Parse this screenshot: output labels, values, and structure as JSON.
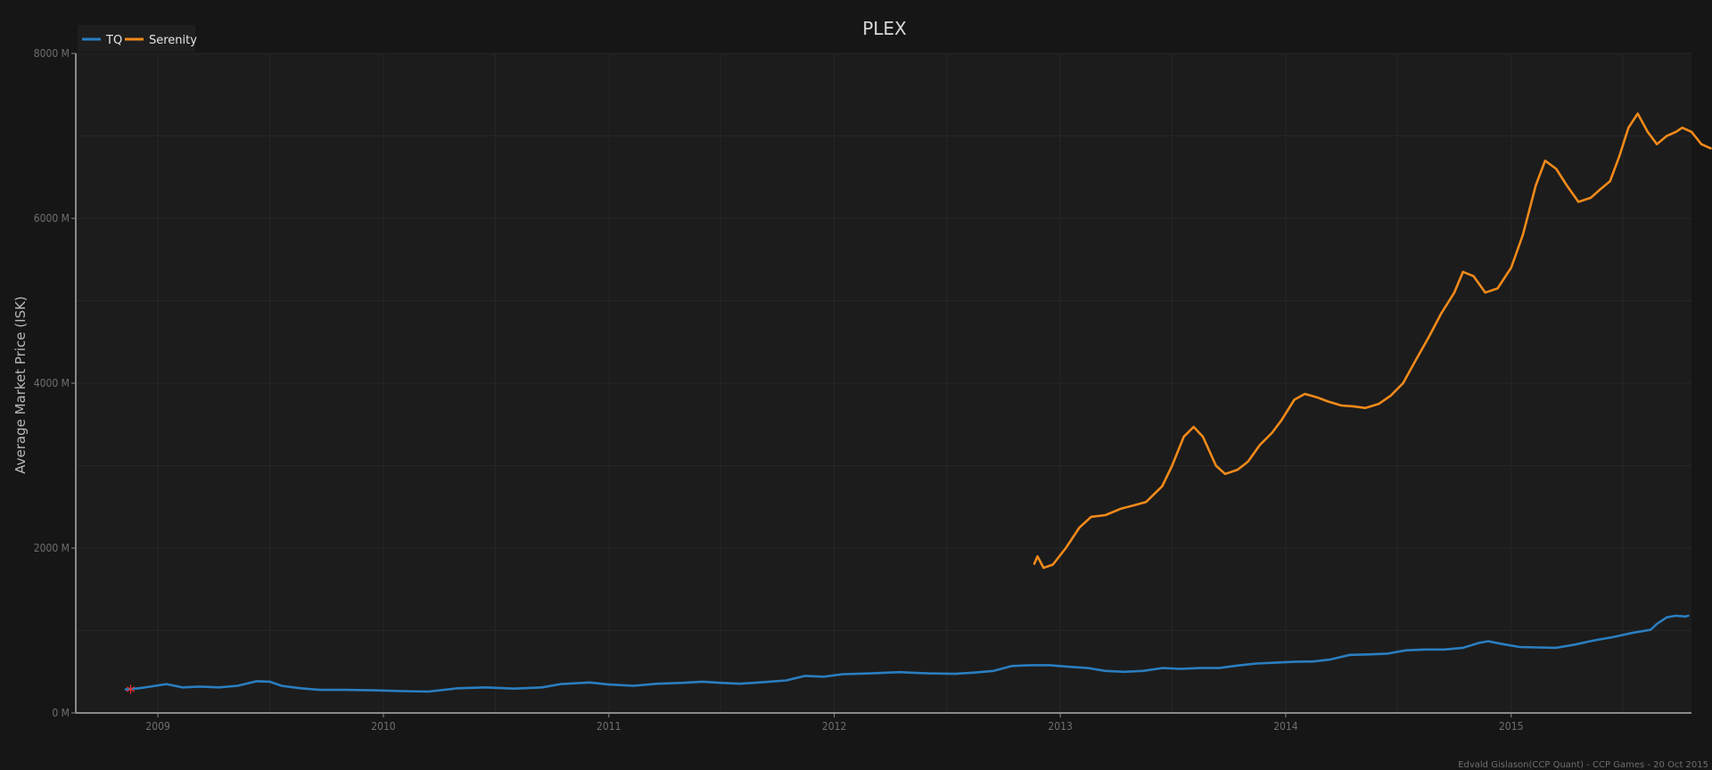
{
  "chart_data": {
    "type": "line",
    "title": "PLEX",
    "ylabel": "Average Market Price (ISK)",
    "xlabel": "",
    "credit": "Edvald Gislason(CCP Quant) - CCP Games - 20 Oct 2015",
    "marker": "*",
    "ylim": [
      0,
      8000
    ],
    "xlim": [
      "2008-08-21",
      "2015-10-20"
    ],
    "y_ticks": [
      {
        "value": 0,
        "label": "0 M"
      },
      {
        "value": 2000,
        "label": "2000 M"
      },
      {
        "value": 4000,
        "label": "4000 M"
      },
      {
        "value": 6000,
        "label": "6000 M"
      },
      {
        "value": 8000,
        "label": "8000 M"
      }
    ],
    "x_ticks": [
      {
        "value": "2009-01-01",
        "label": "2009"
      },
      {
        "value": "2010-01-01",
        "label": "2010"
      },
      {
        "value": "2011-01-01",
        "label": "2011"
      },
      {
        "value": "2012-01-01",
        "label": "2012"
      },
      {
        "value": "2013-01-01",
        "label": "2013"
      },
      {
        "value": "2014-01-01",
        "label": "2014"
      },
      {
        "value": "2015-01-01",
        "label": "2015"
      }
    ],
    "legend_position": "top-left",
    "grid": true,
    "series": [
      {
        "name": "TQ",
        "color": "#2a7ec0",
        "points": [
          [
            "2008-11-10",
            285
          ],
          [
            "2008-12-01",
            300
          ],
          [
            "2008-12-20",
            320
          ],
          [
            "2009-01-15",
            350
          ],
          [
            "2009-02-10",
            310
          ],
          [
            "2009-03-10",
            320
          ],
          [
            "2009-04-10",
            310
          ],
          [
            "2009-05-10",
            330
          ],
          [
            "2009-06-10",
            385
          ],
          [
            "2009-07-01",
            380
          ],
          [
            "2009-07-20",
            330
          ],
          [
            "2009-08-20",
            300
          ],
          [
            "2009-09-20",
            280
          ],
          [
            "2009-11-01",
            280
          ],
          [
            "2009-12-15",
            275
          ],
          [
            "2010-02-01",
            265
          ],
          [
            "2010-03-15",
            260
          ],
          [
            "2010-05-01",
            300
          ],
          [
            "2010-06-15",
            310
          ],
          [
            "2010-08-01",
            295
          ],
          [
            "2010-09-15",
            310
          ],
          [
            "2010-10-15",
            350
          ],
          [
            "2010-12-01",
            370
          ],
          [
            "2011-01-01",
            345
          ],
          [
            "2011-02-10",
            330
          ],
          [
            "2011-03-20",
            355
          ],
          [
            "2011-05-01",
            365
          ],
          [
            "2011-06-01",
            380
          ],
          [
            "2011-07-01",
            365
          ],
          [
            "2011-08-01",
            355
          ],
          [
            "2011-09-01",
            370
          ],
          [
            "2011-10-15",
            395
          ],
          [
            "2011-11-15",
            450
          ],
          [
            "2011-12-15",
            440
          ],
          [
            "2012-01-15",
            470
          ],
          [
            "2012-03-01",
            480
          ],
          [
            "2012-04-15",
            495
          ],
          [
            "2012-06-01",
            480
          ],
          [
            "2012-07-15",
            475
          ],
          [
            "2012-08-15",
            490
          ],
          [
            "2012-09-15",
            510
          ],
          [
            "2012-10-15",
            570
          ],
          [
            "2012-11-15",
            580
          ],
          [
            "2012-12-15",
            580
          ],
          [
            "2013-01-15",
            560
          ],
          [
            "2013-02-15",
            545
          ],
          [
            "2013-03-15",
            510
          ],
          [
            "2013-04-15",
            500
          ],
          [
            "2013-05-15",
            510
          ],
          [
            "2013-06-15",
            545
          ],
          [
            "2013-07-15",
            535
          ],
          [
            "2013-08-15",
            545
          ],
          [
            "2013-09-15",
            545
          ],
          [
            "2013-10-15",
            575
          ],
          [
            "2013-11-15",
            600
          ],
          [
            "2013-12-15",
            610
          ],
          [
            "2014-01-15",
            620
          ],
          [
            "2014-02-15",
            625
          ],
          [
            "2014-03-15",
            650
          ],
          [
            "2014-04-15",
            705
          ],
          [
            "2014-05-15",
            710
          ],
          [
            "2014-06-15",
            720
          ],
          [
            "2014-07-15",
            760
          ],
          [
            "2014-08-15",
            770
          ],
          [
            "2014-09-15",
            770
          ],
          [
            "2014-10-15",
            790
          ],
          [
            "2014-11-10",
            850
          ],
          [
            "2014-11-25",
            870
          ],
          [
            "2014-12-15",
            840
          ],
          [
            "2015-01-15",
            800
          ],
          [
            "2015-02-15",
            795
          ],
          [
            "2015-03-15",
            790
          ],
          [
            "2015-04-15",
            830
          ],
          [
            "2015-05-15",
            880
          ],
          [
            "2015-06-15",
            920
          ],
          [
            "2015-07-15",
            970
          ],
          [
            "2015-08-15",
            1010
          ],
          [
            "2015-08-25",
            1080
          ],
          [
            "2015-09-10",
            1160
          ],
          [
            "2015-09-25",
            1180
          ],
          [
            "2015-10-10",
            1170
          ],
          [
            "2015-10-15",
            1180
          ]
        ]
      },
      {
        "name": "Serenity",
        "color": "#f28a1a",
        "points": [
          [
            "2012-11-20",
            1810
          ],
          [
            "2012-11-25",
            1900
          ],
          [
            "2012-12-05",
            1760
          ],
          [
            "2012-12-20",
            1800
          ],
          [
            "2013-01-10",
            2000
          ],
          [
            "2013-02-01",
            2250
          ],
          [
            "2013-02-20",
            2380
          ],
          [
            "2013-03-15",
            2400
          ],
          [
            "2013-04-10",
            2480
          ],
          [
            "2013-05-01",
            2520
          ],
          [
            "2013-05-20",
            2560
          ],
          [
            "2013-06-15",
            2750
          ],
          [
            "2013-07-01",
            3000
          ],
          [
            "2013-07-20",
            3350
          ],
          [
            "2013-08-05",
            3470
          ],
          [
            "2013-08-20",
            3350
          ],
          [
            "2013-09-10",
            3000
          ],
          [
            "2013-09-25",
            2900
          ],
          [
            "2013-10-15",
            2950
          ],
          [
            "2013-11-01",
            3050
          ],
          [
            "2013-11-20",
            3250
          ],
          [
            "2013-12-10",
            3400
          ],
          [
            "2013-12-25",
            3550
          ],
          [
            "2014-01-15",
            3800
          ],
          [
            "2014-02-01",
            3870
          ],
          [
            "2014-02-20",
            3830
          ],
          [
            "2014-03-10",
            3780
          ],
          [
            "2014-04-01",
            3730
          ],
          [
            "2014-04-20",
            3720
          ],
          [
            "2014-05-10",
            3700
          ],
          [
            "2014-06-01",
            3750
          ],
          [
            "2014-06-20",
            3850
          ],
          [
            "2014-07-10",
            4000
          ],
          [
            "2014-08-01",
            4300
          ],
          [
            "2014-08-20",
            4550
          ],
          [
            "2014-09-10",
            4850
          ],
          [
            "2014-10-01",
            5100
          ],
          [
            "2014-10-15",
            5350
          ],
          [
            "2014-11-01",
            5300
          ],
          [
            "2014-11-20",
            5100
          ],
          [
            "2014-12-10",
            5150
          ],
          [
            "2015-01-01",
            5400
          ],
          [
            "2015-01-20",
            5800
          ],
          [
            "2015-02-10",
            6400
          ],
          [
            "2015-02-25",
            6700
          ],
          [
            "2015-03-15",
            6600
          ],
          [
            "2015-04-01",
            6400
          ],
          [
            "2015-04-20",
            6200
          ],
          [
            "2015-05-10",
            6250
          ],
          [
            "2015-05-25",
            6350
          ],
          [
            "2015-06-10",
            6450
          ],
          [
            "2015-06-25",
            6750
          ],
          [
            "2015-07-10",
            7100
          ],
          [
            "2015-07-25",
            7270
          ],
          [
            "2015-08-10",
            7050
          ],
          [
            "2015-08-25",
            6900
          ],
          [
            "2015-09-10",
            7000
          ],
          [
            "2015-09-25",
            7050
          ],
          [
            "2015-10-05",
            7100
          ],
          [
            "2015-10-20",
            7050
          ],
          [
            "2015-11-05",
            6900
          ],
          [
            "2015-11-20",
            6850
          ]
        ]
      }
    ]
  }
}
